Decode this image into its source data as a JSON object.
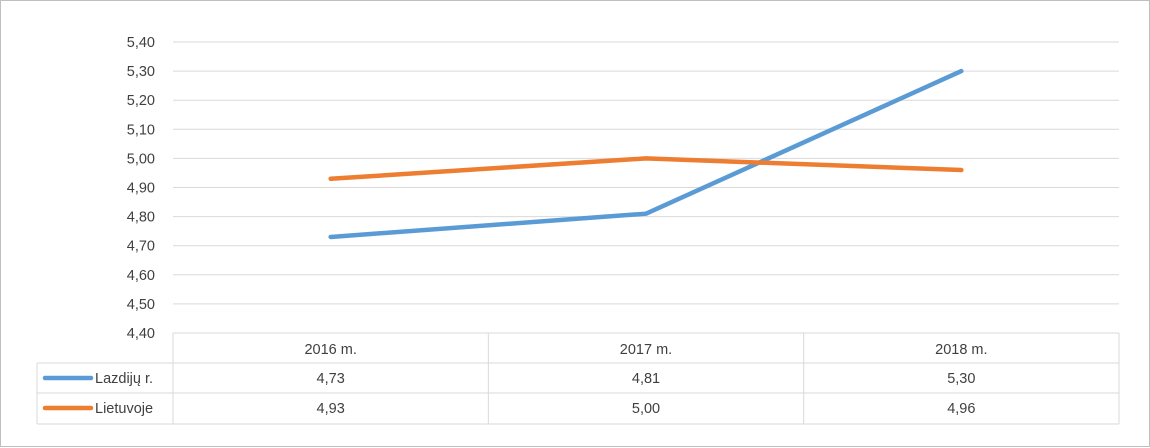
{
  "chart_data": {
    "type": "line",
    "categories": [
      "2016 m.",
      "2017 m.",
      "2018 m."
    ],
    "ylim": [
      4.4,
      5.4
    ],
    "yticks": [
      "4,40",
      "4,50",
      "4,60",
      "4,70",
      "4,80",
      "4,90",
      "5,00",
      "5,10",
      "5,20",
      "5,30",
      "5,40"
    ],
    "ytick_values": [
      4.4,
      4.5,
      4.6,
      4.7,
      4.8,
      4.9,
      5.0,
      5.1,
      5.2,
      5.3,
      5.4
    ],
    "grid": true,
    "legend_placement": "data-table-left",
    "series": [
      {
        "name": "Lazdijų r.",
        "color": "#5b9bd5",
        "values": [
          4.73,
          4.81,
          5.3
        ],
        "labels": [
          "4,73",
          "4,81",
          "5,30"
        ]
      },
      {
        "name": "Lietuvoje",
        "color": "#ed7d31",
        "values": [
          4.93,
          5.0,
          4.96
        ],
        "labels": [
          "4,93",
          "5,00",
          "4,96"
        ]
      }
    ]
  }
}
